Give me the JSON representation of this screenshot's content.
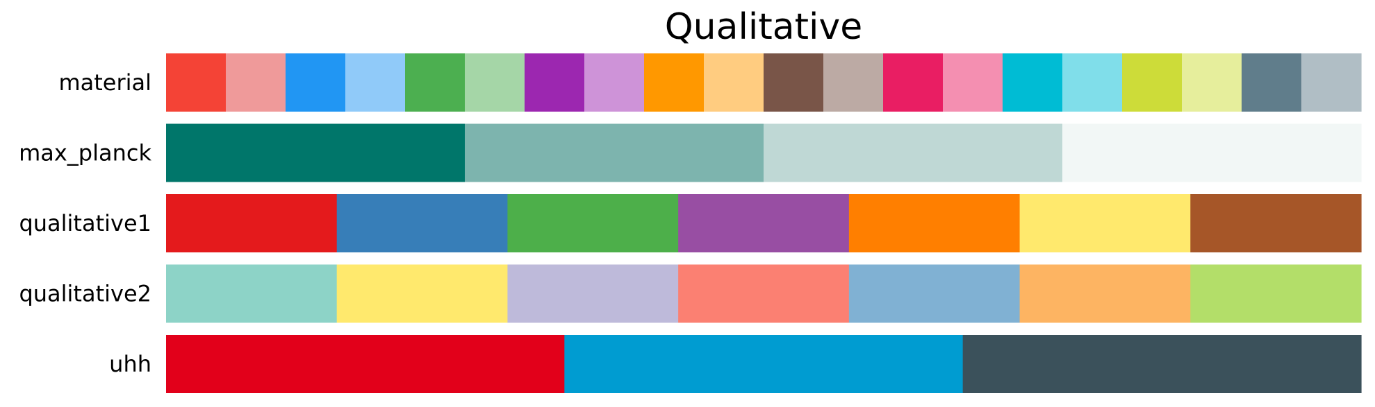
{
  "chart_data": {
    "type": "heatmap",
    "title": "Qualitative",
    "colormaps": [
      {
        "name": "material",
        "colors": [
          "#F44336",
          "#EF9A9A",
          "#2196F3",
          "#90CAF9",
          "#4CAF50",
          "#A5D6A7",
          "#9C27B0",
          "#CE93D8",
          "#FF9800",
          "#FFCC80",
          "#795548",
          "#BCAAA4",
          "#E91E63",
          "#F48FB1",
          "#00BCD4",
          "#80DEEA",
          "#CDDC39",
          "#E6EE9C",
          "#607D8B",
          "#B0BEC5"
        ]
      },
      {
        "name": "max_planck",
        "colors": [
          "#00766A",
          "#7DB4AE",
          "#BFD8D5",
          "#F2F7F6"
        ]
      },
      {
        "name": "qualitative1",
        "colors": [
          "#E41A1C",
          "#377EB8",
          "#4DAF4A",
          "#984EA3",
          "#FF7F00",
          "#FFE96D",
          "#A65628"
        ]
      },
      {
        "name": "qualitative2",
        "colors": [
          "#8DD3C7",
          "#FFE96D",
          "#BEBADA",
          "#FB8072",
          "#80B1D3",
          "#FDB462",
          "#B3DE69"
        ]
      },
      {
        "name": "uhh",
        "colors": [
          "#E2001A",
          "#009CD1",
          "#3B515B"
        ]
      }
    ]
  }
}
